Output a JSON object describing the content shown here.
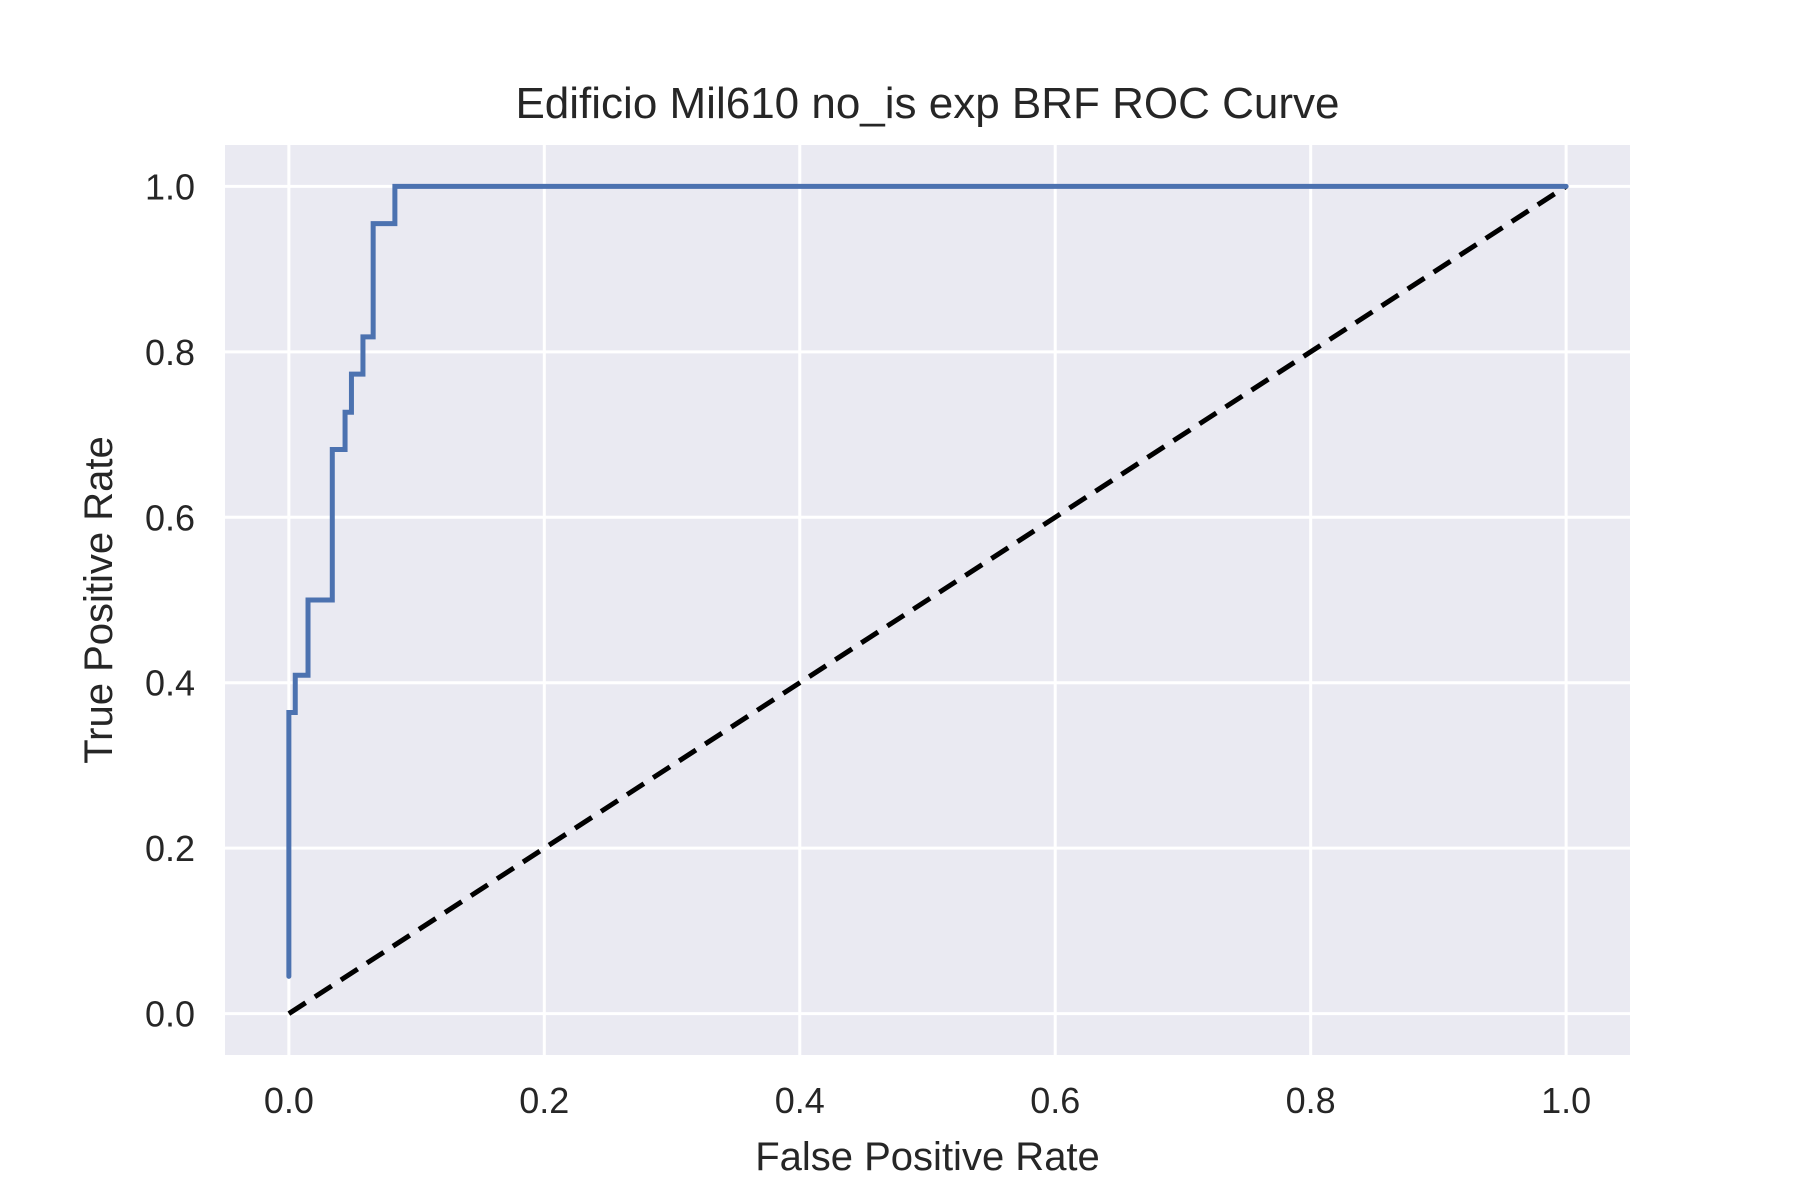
{
  "chart_data": {
    "type": "line",
    "title": "Edificio Mil610 no_is exp BRF ROC Curve",
    "xlabel": "False Positive Rate",
    "ylabel": "True Positive Rate",
    "xlim": [
      -0.05,
      1.05
    ],
    "ylim": [
      -0.05,
      1.05
    ],
    "xticks": [
      "0.0",
      "0.2",
      "0.4",
      "0.6",
      "0.8",
      "1.0"
    ],
    "yticks": [
      "0.0",
      "0.2",
      "0.4",
      "0.6",
      "0.8",
      "1.0"
    ],
    "grid": true,
    "colors": {
      "background": "#eaeaf2",
      "grid": "#ffffff",
      "roc": "#4c72b0",
      "baseline": "#000000"
    },
    "series": [
      {
        "style": "solid",
        "x": [
          0.0,
          0.0,
          0.005,
          0.005,
          0.015,
          0.015,
          0.034,
          0.034,
          0.044,
          0.044,
          0.049,
          0.049,
          0.058,
          0.058,
          0.066,
          0.066,
          0.083,
          0.083,
          1.0
        ],
        "y": [
          0.045,
          0.364,
          0.364,
          0.409,
          0.409,
          0.5,
          0.5,
          0.682,
          0.682,
          0.727,
          0.727,
          0.773,
          0.773,
          0.818,
          0.818,
          0.955,
          0.955,
          1.0,
          1.0
        ]
      },
      {
        "style": "dashed",
        "x": [
          0.0,
          1.0
        ],
        "y": [
          0.0,
          1.0
        ]
      }
    ]
  }
}
